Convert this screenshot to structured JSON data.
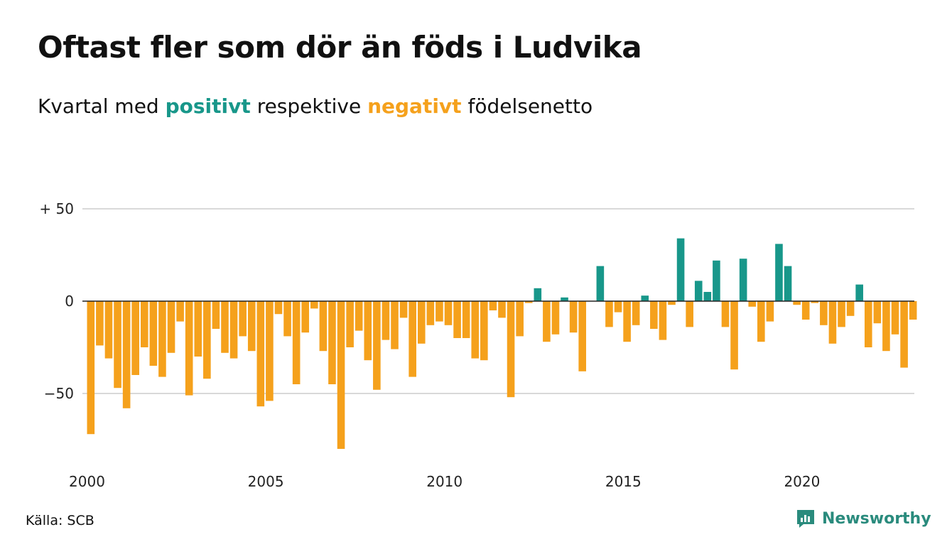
{
  "title": "Oftast fler som dör än föds i Ludvika",
  "subtitle": {
    "prefix": "Kvartal med",
    "positive": "positivt",
    "middle": "respektive",
    "negative": "negativt",
    "suffix": "födelsenetto"
  },
  "source": "Källa: SCB",
  "brand": "Newsworthy",
  "colors": {
    "positive": "#18978a",
    "negative": "#f5a11c",
    "grid": "#d9d9d9",
    "zero": "#222222"
  },
  "chart_data": {
    "type": "bar",
    "x_start": "2000 Q1",
    "frequency": "quarterly",
    "xticks": [
      {
        "value": 2000,
        "label": "2000"
      },
      {
        "value": 2005,
        "label": "2005"
      },
      {
        "value": 2010,
        "label": "2010"
      },
      {
        "value": 2015,
        "label": "2015"
      },
      {
        "value": 2020,
        "label": "2020"
      }
    ],
    "yticks": [
      {
        "value": 50,
        "label": "+ 50"
      },
      {
        "value": 0,
        "label": "0"
      },
      {
        "value": -50,
        "label": "−50"
      }
    ],
    "ylim": [
      -83,
      50
    ],
    "grid": true,
    "values": [
      -72,
      -24,
      -31,
      -47,
      -58,
      -40,
      -25,
      -35,
      -41,
      -28,
      -11,
      -51,
      -30,
      -42,
      -15,
      -28,
      -31,
      -19,
      -27,
      -57,
      -54,
      -7,
      -19,
      -45,
      -17,
      -4,
      -27,
      -45,
      -80,
      -25,
      -16,
      -32,
      -48,
      -21,
      -26,
      -9,
      -41,
      -23,
      -13,
      -11,
      -13,
      -20,
      -20,
      -31,
      -32,
      -5,
      -9,
      -52,
      -19,
      -1,
      7,
      -22,
      -18,
      2,
      -17,
      -38,
      0,
      19,
      -14,
      -6,
      -22,
      -13,
      3,
      -15,
      -21,
      -2,
      34,
      -14,
      11,
      5,
      22,
      -14,
      -37,
      23,
      -3,
      -22,
      -11,
      31,
      19,
      -2,
      -10,
      -1,
      -13,
      -23,
      -14,
      -8,
      9,
      -25,
      -12,
      -27,
      -18,
      -36,
      -10
    ]
  }
}
